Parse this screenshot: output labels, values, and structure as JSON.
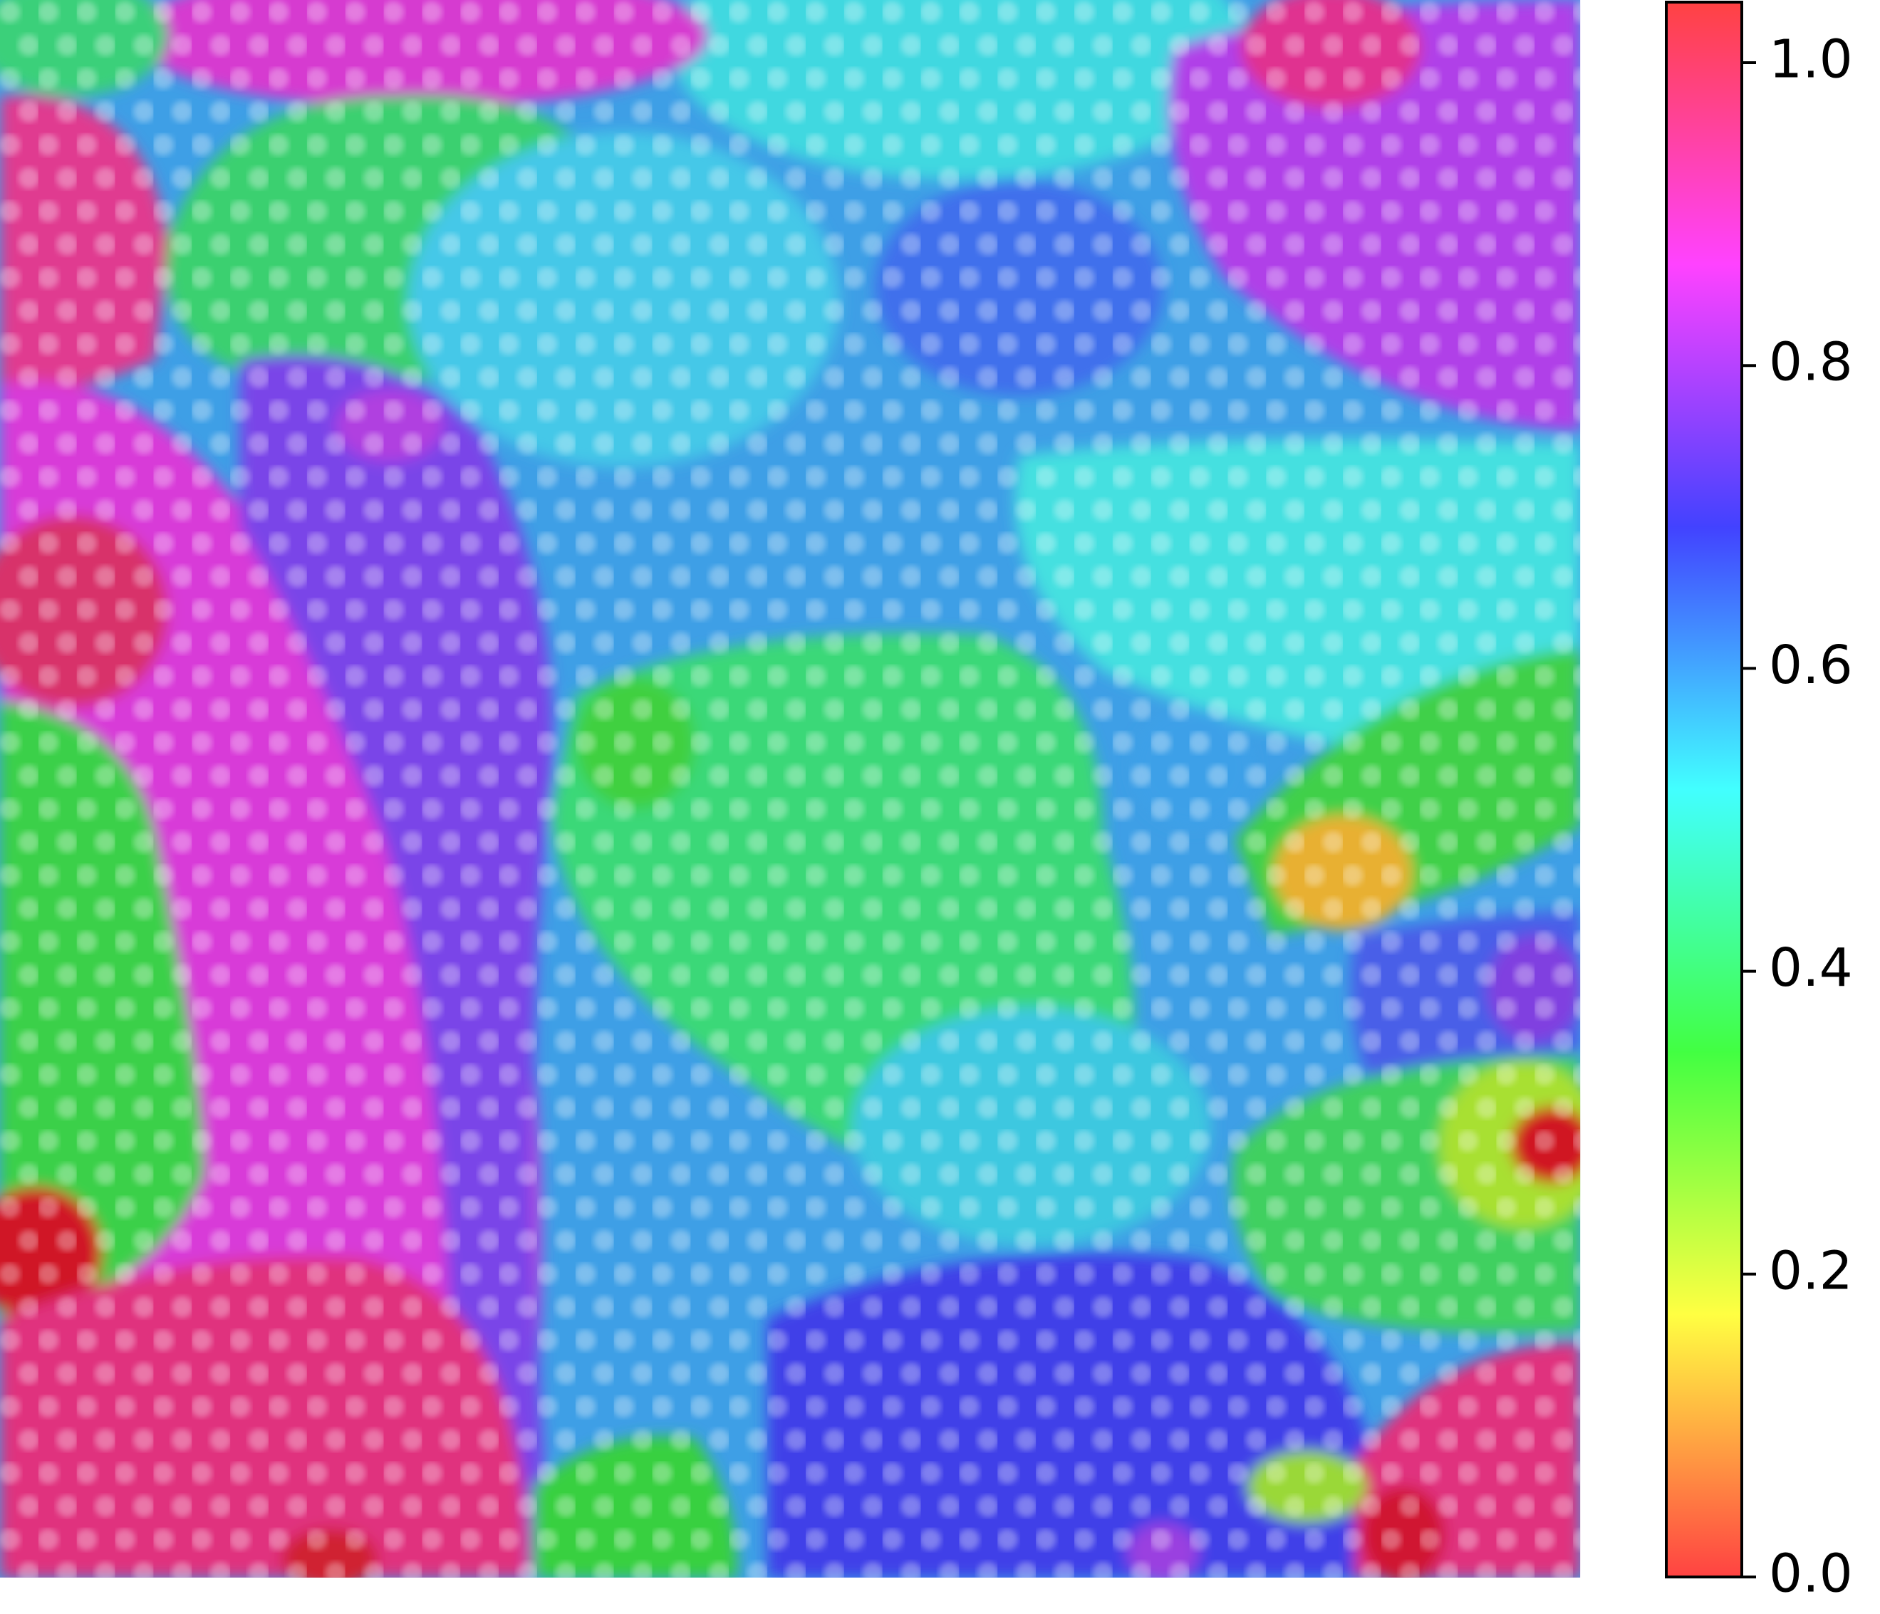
{
  "chart_data": {
    "type": "colorbar",
    "colormap": "hsv",
    "ylim": [
      0,
      1.04
    ],
    "yticks": [
      {
        "value": 0,
        "label": "0.0"
      },
      {
        "value": 0.2,
        "label": "0.2"
      },
      {
        "value": 0.4,
        "label": "0.4"
      },
      {
        "value": 0.6,
        "label": "0.6"
      },
      {
        "value": 0.8,
        "label": "0.8"
      },
      {
        "value": 1,
        "label": "1.0"
      }
    ]
  }
}
